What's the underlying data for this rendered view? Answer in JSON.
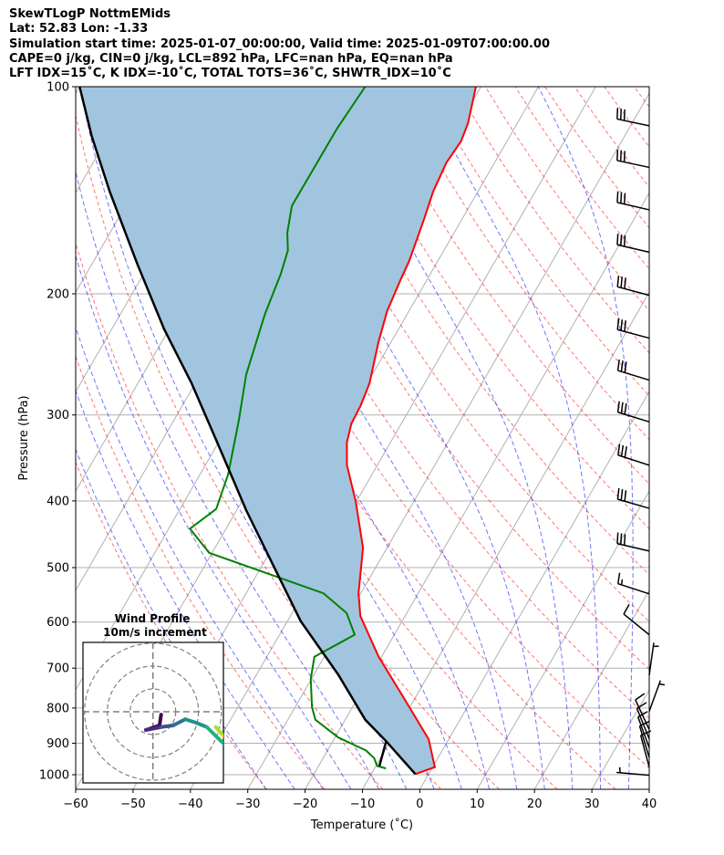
{
  "header": {
    "title": "SkewTLogP NottmEMids",
    "location": "Lat: 52.83   Lon: -1.33",
    "times": "Simulation start time: 2025-01-07_00:00:00, Valid time: 2025-01-09T07:00:00.00",
    "indices1": "CAPE=0 j/kg, CIN=0 j/kg, LCL=892 hPa, LFC=nan hPa, EQ=nan hPa",
    "indices2": "LFT IDX=15˚C, K IDX=-10˚C, TOTAL TOTS=36˚C, SHWTR_IDX=10˚C"
  },
  "colors": {
    "temperature": "#ff0000",
    "dewpoint": "#008000",
    "parcel": "#000000",
    "cin_fill": "#a1c5df",
    "isotherm": "#b0b0b0",
    "dry_adiabat": "#ff0000",
    "moist_adiabat": "#0000ff"
  },
  "chart_data": {
    "type": "line",
    "title": "SkewTLogP NottmEMids",
    "xlabel": "Temperature (˚C)",
    "ylabel": "Pressure (hPa)",
    "xlim": [
      -60,
      40
    ],
    "ylim": [
      1050,
      100
    ],
    "yscale": "log",
    "skew_deg": 30,
    "grid": true,
    "xticks": [
      -60,
      -50,
      -40,
      -30,
      -20,
      -10,
      0,
      10,
      20,
      30,
      40
    ],
    "xtick_labels": [
      "−60",
      "−50",
      "−40",
      "−30",
      "−20",
      "−10",
      "0",
      "10",
      "20",
      "30",
      "40"
    ],
    "yticks": [
      100,
      200,
      300,
      400,
      500,
      600,
      700,
      800,
      900,
      1000
    ],
    "ytick_labels": [
      "100",
      "200",
      "300",
      "400",
      "500",
      "600",
      "700",
      "800",
      "900",
      "1000"
    ],
    "series": [
      {
        "name": "Temperature",
        "points": [
          [
            998,
            -2.3
          ],
          [
            975,
            0.4
          ],
          [
            888,
            -3.5
          ],
          [
            762,
            -12.9
          ],
          [
            674,
            -20.5
          ],
          [
            588,
            -27.8
          ],
          [
            545,
            -30.4
          ],
          [
            468,
            -34.2
          ],
          [
            401,
            -40.1
          ],
          [
            355,
            -45.3
          ],
          [
            329,
            -47.6
          ],
          [
            309,
            -48.7
          ],
          [
            291,
            -48.9
          ],
          [
            270,
            -49.6
          ],
          [
            235,
            -52.2
          ],
          [
            212,
            -53.8
          ],
          [
            191,
            -54.6
          ],
          [
            179,
            -55.0
          ],
          [
            156,
            -56.6
          ],
          [
            142,
            -57.8
          ],
          [
            129,
            -58.4
          ],
          [
            120,
            -58.0
          ],
          [
            113,
            -58.6
          ],
          [
            100,
            -60.9
          ]
        ]
      },
      {
        "name": "Dewpoint",
        "points": [
          [
            979,
            -8.0
          ],
          [
            971,
            -9.8
          ],
          [
            946,
            -11.1
          ],
          [
            922,
            -13.3
          ],
          [
            883,
            -19.4
          ],
          [
            832,
            -25.2
          ],
          [
            797,
            -27.1
          ],
          [
            726,
            -30.1
          ],
          [
            674,
            -31.7
          ],
          [
            626,
            -26.9
          ],
          [
            582,
            -30.5
          ],
          [
            545,
            -36.5
          ],
          [
            476,
            -60.5
          ],
          [
            439,
            -66.3
          ],
          [
            411,
            -63.7
          ],
          [
            366,
            -65.1
          ],
          [
            305,
            -68.7
          ],
          [
            262,
            -72.0
          ],
          [
            214,
            -74.8
          ],
          [
            187,
            -76.1
          ],
          [
            173,
            -77.2
          ],
          [
            163,
            -79.1
          ],
          [
            149,
            -81.0
          ],
          [
            115,
            -80.9
          ],
          [
            100,
            -80.2
          ]
        ]
      },
      {
        "name": "Parcel",
        "points": [
          [
            998,
            -2.3
          ],
          [
            894,
            -10.7
          ],
          [
            832,
            -16.5
          ],
          [
            715,
            -25.8
          ],
          [
            598,
            -37.7
          ],
          [
            497,
            -48.0
          ],
          [
            413,
            -58.3
          ],
          [
            334,
            -69.4
          ],
          [
            270,
            -80.6
          ],
          [
            225,
            -90.9
          ],
          [
            181,
            -102.1
          ],
          [
            142,
            -114.2
          ],
          [
            118,
            -122.9
          ],
          [
            100,
            -130.0
          ]
        ]
      },
      {
        "name": "LCL mixing line",
        "points": [
          [
            971,
            -9.4
          ],
          [
            894,
            -10.7
          ]
        ]
      }
    ],
    "shading": {
      "name": "CIN",
      "between": [
        "Temperature",
        "Parcel"
      ]
    },
    "background_lines": {
      "isotherms_step": 10,
      "dry_adiabats_theta_K": {
        "start": 243,
        "stop": 473,
        "step": 10
      },
      "moist_adiabats_T1000_C": {
        "start": -30,
        "stop": 40,
        "step": 5
      }
    },
    "wind_barbs": {
      "units_per_full_barb": 10,
      "levels": [
        {
          "p": 114,
          "dir": 282,
          "speed": 30
        },
        {
          "p": 131,
          "dir": 282,
          "speed": 30
        },
        {
          "p": 151,
          "dir": 283,
          "speed": 30
        },
        {
          "p": 174,
          "dir": 283,
          "speed": 30
        },
        {
          "p": 201,
          "dir": 285,
          "speed": 30
        },
        {
          "p": 232,
          "dir": 285,
          "speed": 30
        },
        {
          "p": 267,
          "dir": 287,
          "speed": 30
        },
        {
          "p": 307,
          "dir": 287,
          "speed": 30
        },
        {
          "p": 355,
          "dir": 288,
          "speed": 30
        },
        {
          "p": 410,
          "dir": 286,
          "speed": 30
        },
        {
          "p": 473,
          "dir": 283,
          "speed": 30
        },
        {
          "p": 546,
          "dir": 288,
          "speed": 15
        },
        {
          "p": 626,
          "dir": 309,
          "speed": 10
        },
        {
          "p": 717,
          "dir": 8,
          "speed": 5
        },
        {
          "p": 809,
          "dir": 20,
          "speed": 5
        },
        {
          "p": 860,
          "dir": 335,
          "speed": 10
        },
        {
          "p": 887,
          "dir": 338,
          "speed": 10
        },
        {
          "p": 914,
          "dir": 340,
          "speed": 10
        },
        {
          "p": 944,
          "dir": 343,
          "speed": 10
        },
        {
          "p": 975,
          "dir": 345,
          "speed": 10
        },
        {
          "p": 1002,
          "dir": 275,
          "speed": 5
        }
      ]
    },
    "hodograph": {
      "title": "Wind Profile",
      "subtitle": "10m/s increment",
      "rings_ms": [
        10,
        20,
        30
      ],
      "uv_ms": [
        [
          3.6,
          -1.3
        ],
        [
          2.9,
          -6.0
        ],
        [
          -3.1,
          -8.0
        ],
        [
          3.6,
          -6.7
        ],
        [
          8.9,
          -6.0
        ],
        [
          14.2,
          -3.3
        ],
        [
          18.9,
          -4.8
        ],
        [
          23.6,
          -6.7
        ],
        [
          31.0,
          -14.0
        ]
      ],
      "uv_top_ms": [
        [
          27.6,
          -6.7
        ],
        [
          31.0,
          -10.7
        ],
        [
          33.0,
          -13.0
        ]
      ]
    }
  }
}
